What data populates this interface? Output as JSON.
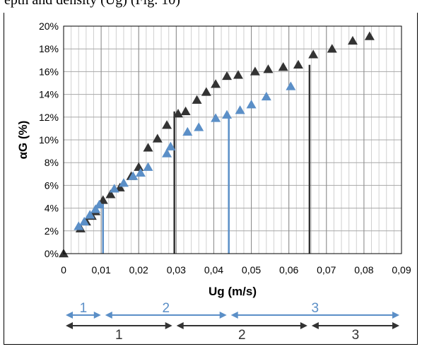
{
  "caption_fragment": "epth and density (Ug) (Fig. 10)",
  "chart_data": {
    "type": "scatter",
    "xlabel": "Ug (m/s)",
    "ylabel": "αG (%)",
    "xlim": [
      0,
      0.09
    ],
    "ylim": [
      0,
      0.2
    ],
    "x_ticks": [
      "0",
      "0,01",
      "0,02",
      "0,03",
      "0,04",
      "0,05",
      "0,06",
      "0,07",
      "0,08",
      "0,09"
    ],
    "y_ticks": [
      "0%",
      "2%",
      "4%",
      "6%",
      "8%",
      "10%",
      "12%",
      "14%",
      "16%",
      "18%",
      "20%"
    ],
    "grid": true,
    "series": [
      {
        "color": "#333333",
        "marker": "triangle",
        "points": [
          [
            0.0,
            0.0
          ],
          [
            0.0045,
            0.022
          ],
          [
            0.006,
            0.028
          ],
          [
            0.0075,
            0.033
          ],
          [
            0.0085,
            0.037
          ],
          [
            0.0105,
            0.047
          ],
          [
            0.0125,
            0.052
          ],
          [
            0.015,
            0.058
          ],
          [
            0.018,
            0.068
          ],
          [
            0.02,
            0.076
          ],
          [
            0.0225,
            0.093
          ],
          [
            0.025,
            0.101
          ],
          [
            0.0275,
            0.113
          ],
          [
            0.0305,
            0.123
          ],
          [
            0.0325,
            0.125
          ],
          [
            0.0355,
            0.135
          ],
          [
            0.038,
            0.142
          ],
          [
            0.0405,
            0.149
          ],
          [
            0.0435,
            0.156
          ],
          [
            0.0465,
            0.157
          ],
          [
            0.051,
            0.16
          ],
          [
            0.0545,
            0.162
          ],
          [
            0.0585,
            0.164
          ],
          [
            0.0625,
            0.166
          ],
          [
            0.0665,
            0.175
          ],
          [
            0.0715,
            0.18
          ],
          [
            0.077,
            0.187
          ],
          [
            0.0815,
            0.191
          ]
        ]
      },
      {
        "color": "#5b8fc7",
        "marker": "triangle",
        "points": [
          [
            0.004,
            0.024
          ],
          [
            0.0055,
            0.028
          ],
          [
            0.007,
            0.034
          ],
          [
            0.0085,
            0.039
          ],
          [
            0.0095,
            0.043
          ],
          [
            0.0135,
            0.057
          ],
          [
            0.016,
            0.062
          ],
          [
            0.0185,
            0.068
          ],
          [
            0.0205,
            0.071
          ],
          [
            0.0225,
            0.076
          ],
          [
            0.0275,
            0.088
          ],
          [
            0.0285,
            0.094
          ],
          [
            0.033,
            0.107
          ],
          [
            0.036,
            0.111
          ],
          [
            0.0405,
            0.119
          ],
          [
            0.0435,
            0.122
          ],
          [
            0.047,
            0.126
          ],
          [
            0.05,
            0.131
          ],
          [
            0.054,
            0.138
          ],
          [
            0.0605,
            0.147
          ]
        ]
      }
    ],
    "vertical_markers": [
      {
        "x": 0.0105,
        "y_top": 0.045,
        "color": "#5b8fc7"
      },
      {
        "x": 0.044,
        "y_top": 0.12,
        "color": "#5b8fc7"
      },
      {
        "x": 0.0295,
        "y_top": 0.125,
        "color": "#333333"
      },
      {
        "x": 0.0655,
        "y_top": 0.166,
        "color": "#333333"
      }
    ],
    "regimes": {
      "blue": {
        "color": "#5b8fc7",
        "bounds": [
          0,
          0.0105,
          0.044,
          0.09
        ],
        "labels": [
          "1",
          "2",
          "3"
        ]
      },
      "black": {
        "color": "#333333",
        "bounds": [
          0,
          0.0295,
          0.0655,
          0.09
        ],
        "labels": [
          "1",
          "2",
          "3"
        ]
      }
    }
  }
}
